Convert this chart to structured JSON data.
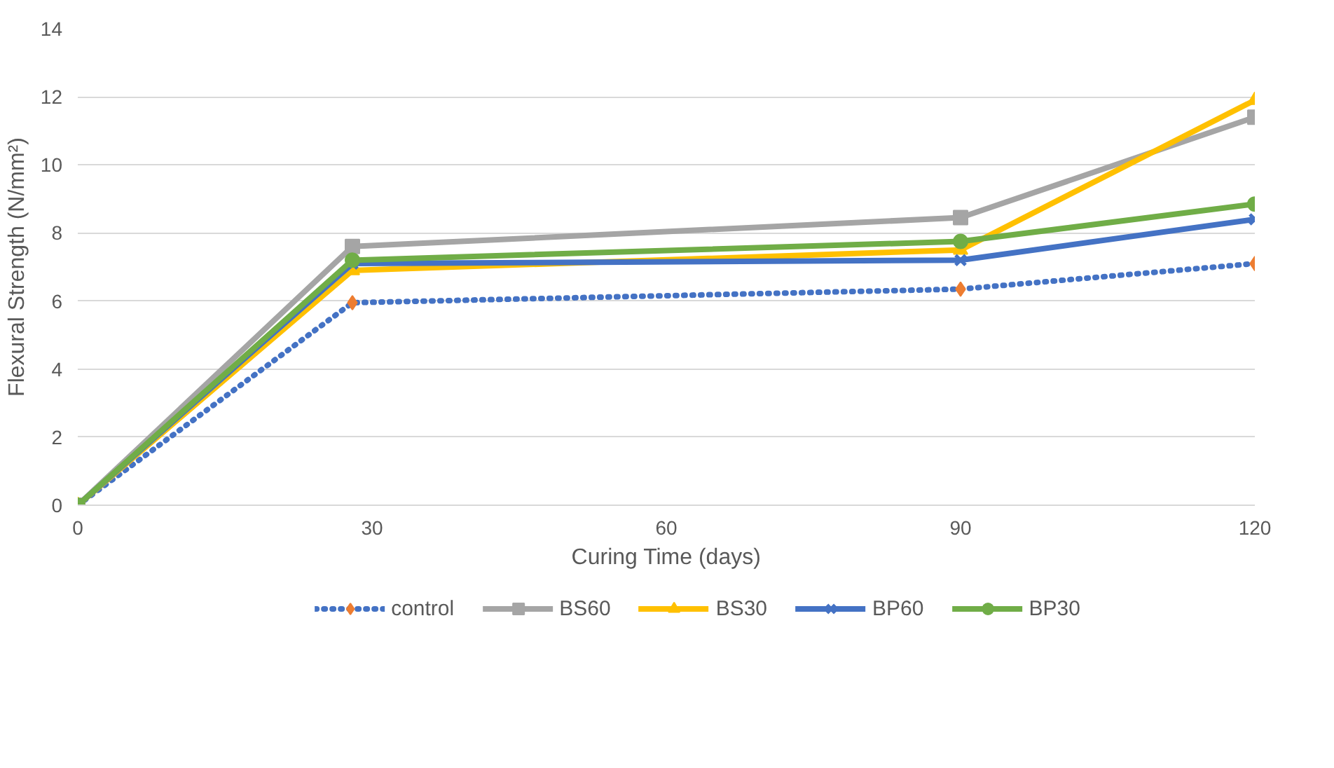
{
  "chart_data": {
    "type": "line",
    "xlabel": "Curing Time (days)",
    "ylabel": "Flexural Strength (N/mm²)",
    "x": [
      0,
      28,
      90,
      120
    ],
    "xlim": [
      0,
      120
    ],
    "xticks": [
      0,
      30,
      60,
      90,
      120
    ],
    "ylim": [
      0,
      14
    ],
    "yticks": [
      0,
      2,
      4,
      6,
      8,
      10,
      12,
      14
    ],
    "grid": "y",
    "legend": "bottom",
    "series": [
      {
        "name": "control",
        "color": "#4472c4",
        "colors": [
          "#ed7d31",
          "#ed7d31",
          "#ed7d31",
          "#ed7d31"
        ],
        "marker": "diamond",
        "line_style": "dotted",
        "values": [
          0,
          5.95,
          6.35,
          7.1
        ]
      },
      {
        "name": "BS60",
        "color": "#a5a5a5",
        "marker": "square",
        "line_style": "solid",
        "values": [
          0,
          7.6,
          8.45,
          11.4
        ]
      },
      {
        "name": "BS30",
        "color": "#ffc000",
        "marker": "triangle",
        "line_style": "solid",
        "values": [
          0,
          6.9,
          7.5,
          11.9
        ]
      },
      {
        "name": "BP60",
        "color": "#4472c4",
        "marker": "cross",
        "line_style": "solid",
        "values": [
          0,
          7.1,
          7.2,
          8.4
        ]
      },
      {
        "name": "BP30",
        "color": "#70ad47",
        "marker": "circle",
        "line_style": "solid",
        "values": [
          0,
          7.2,
          7.75,
          8.85
        ]
      }
    ]
  }
}
